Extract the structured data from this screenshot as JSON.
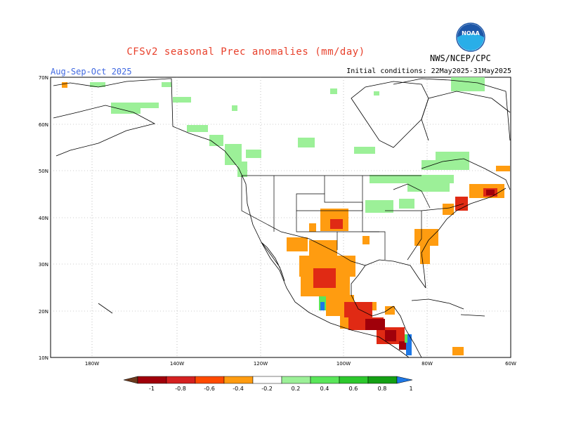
{
  "header": {
    "title": "CFSv2 seasonal Prec anomalies (mm/day)",
    "season": "Aug-Sep-Oct 2025",
    "initial_conditions": "Initial conditions: 22May2025-31May2025",
    "agency": "NWS/NCEP/CPC",
    "logo_text": "NOAA"
  },
  "map": {
    "lon_labels": [
      "180W",
      "140W",
      "120W",
      "100W",
      "80W",
      "60W"
    ],
    "lat_labels": [
      "70N",
      "60N",
      "50N",
      "40N",
      "30N",
      "20N",
      "10N"
    ]
  },
  "legend": {
    "labels": [
      "-1",
      "-0.8",
      "-0.6",
      "-0.4",
      "-0.2",
      "0.2",
      "0.4",
      "0.6",
      "0.8",
      "1"
    ],
    "colors": [
      "#6b3a1e",
      "#a0000a",
      "#d42020",
      "#ff4a00",
      "#ff9c10",
      "#ffffff",
      "#9cf098",
      "#5ae65a",
      "#2dc82d",
      "#14a014",
      "#1e78e6"
    ]
  },
  "colors": {
    "title": "#e8402b",
    "season": "#4169e1",
    "wet_light": "#9cf098",
    "dry_orange": "#ff9c10",
    "dry_red": "#e02a14",
    "dry_dark": "#a0000a"
  }
}
